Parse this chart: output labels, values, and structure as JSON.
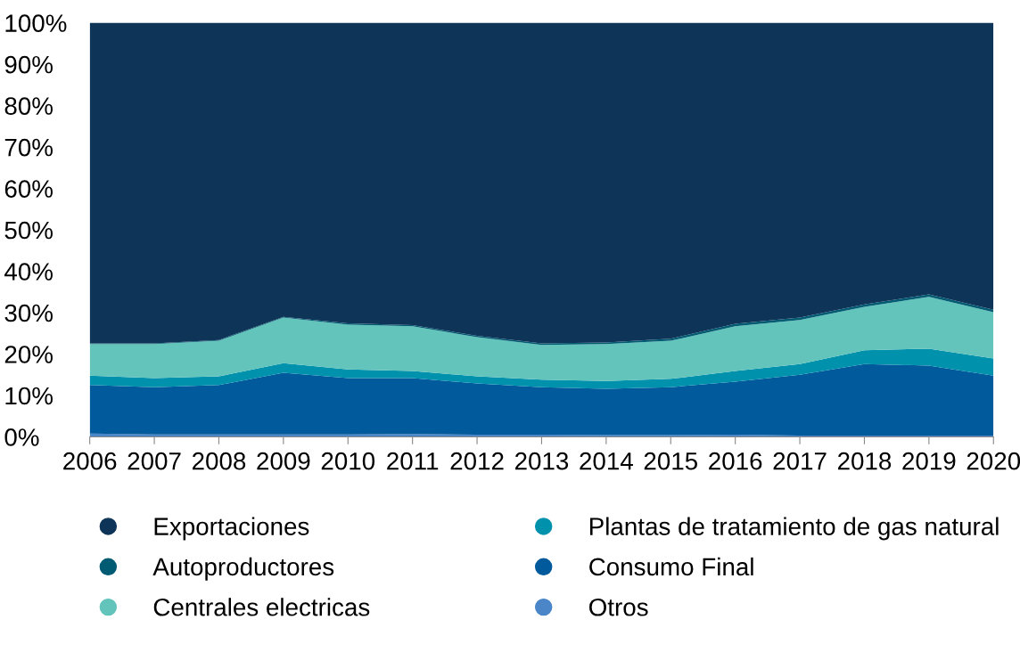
{
  "chart_data": {
    "type": "area",
    "stacked": true,
    "x": [
      2006,
      2007,
      2008,
      2009,
      2010,
      2011,
      2012,
      2013,
      2014,
      2015,
      2016,
      2017,
      2018,
      2019,
      2020
    ],
    "series": [
      {
        "name": "Otros",
        "color": "#4a86c8",
        "values": [
          0.8,
          0.6,
          0.6,
          0.6,
          0.6,
          0.7,
          0.5,
          0.5,
          0.4,
          0.4,
          0.5,
          0.3,
          0.3,
          0.3,
          0.3
        ]
      },
      {
        "name": "Consumo Final",
        "color": "#005a9c",
        "values": [
          11.7,
          11.4,
          11.9,
          14.9,
          13.6,
          13.5,
          12.4,
          11.5,
          11.2,
          11.6,
          12.8,
          14.7,
          17.3,
          16.9,
          14.5
        ]
      },
      {
        "name": "Plantas de tratamiento de gas natural",
        "color": "#0091ad",
        "values": [
          2.3,
          2.2,
          2.1,
          2.3,
          2.1,
          1.7,
          1.7,
          1.8,
          1.9,
          2.0,
          2.6,
          2.6,
          3.3,
          4.1,
          4.1
        ]
      },
      {
        "name": "Centrales electricas",
        "color": "#62c4bb",
        "values": [
          7.6,
          8.2,
          8.6,
          11.0,
          10.8,
          10.8,
          9.5,
          8.4,
          8.9,
          9.2,
          10.8,
          10.6,
          10.5,
          12.5,
          11.2
        ]
      },
      {
        "name": "Autoproductores",
        "color": "#005b73",
        "values": [
          0.2,
          0.2,
          0.2,
          0.2,
          0.3,
          0.3,
          0.3,
          0.4,
          0.4,
          0.5,
          0.6,
          0.6,
          0.6,
          0.6,
          0.6
        ]
      },
      {
        "name": "Exportaciones",
        "color": "#0e3558",
        "values": [
          77.4,
          77.4,
          76.6,
          71.0,
          72.6,
          73.0,
          75.6,
          77.4,
          77.2,
          76.3,
          72.7,
          71.2,
          68.0,
          65.6,
          69.3
        ]
      }
    ],
    "xlim": [
      2006,
      2020
    ],
    "xticks": [
      2006,
      2007,
      2008,
      2009,
      2010,
      2011,
      2012,
      2013,
      2014,
      2015,
      2016,
      2017,
      2018,
      2019,
      2020
    ],
    "ylim": [
      0,
      100
    ],
    "yticks": [
      {
        "value": 0,
        "label": "0%"
      },
      {
        "value": 10,
        "label": "10%"
      },
      {
        "value": 20,
        "label": "20%"
      },
      {
        "value": 30,
        "label": "30%"
      },
      {
        "value": 40,
        "label": "40%"
      },
      {
        "value": 50,
        "label": "50%"
      },
      {
        "value": 60,
        "label": "60%"
      },
      {
        "value": 70,
        "label": "70%"
      },
      {
        "value": 80,
        "label": "80%"
      },
      {
        "value": 90,
        "label": "90%"
      },
      {
        "value": 100,
        "label": "100%"
      }
    ],
    "grid": false,
    "legend": "bottom"
  }
}
